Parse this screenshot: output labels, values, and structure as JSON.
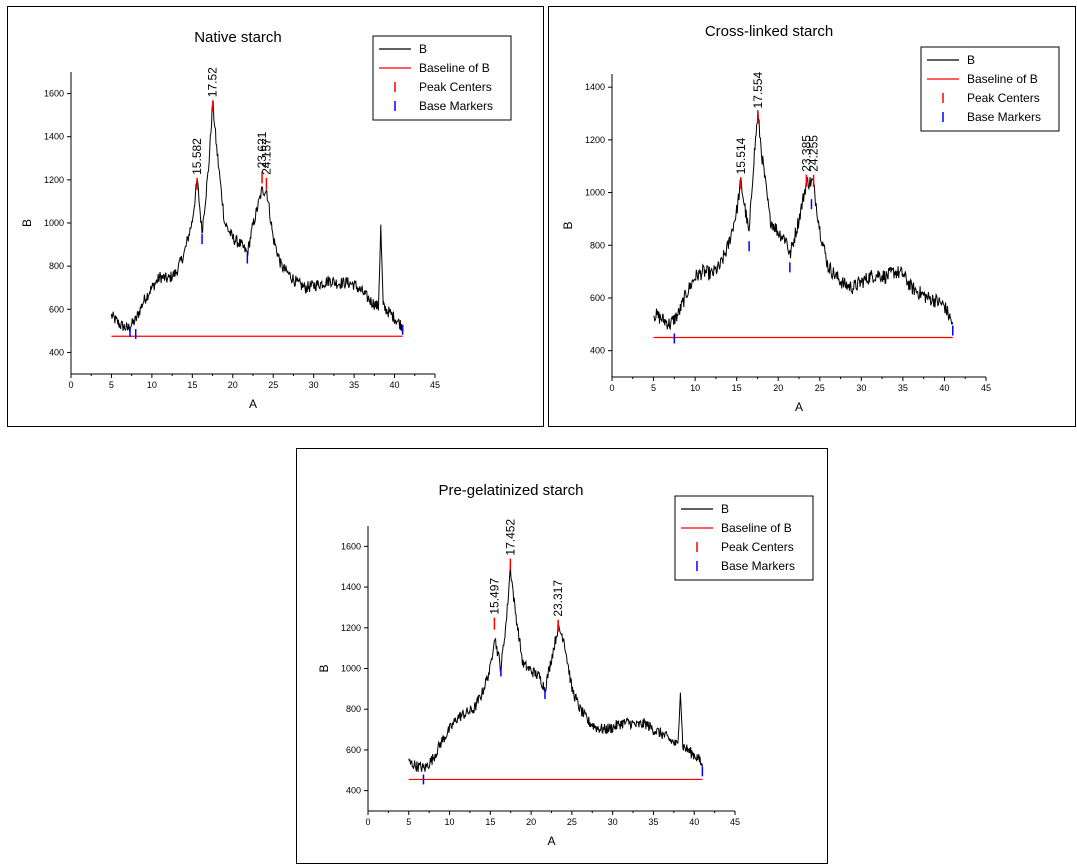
{
  "chart_data": [
    {
      "type": "line",
      "title": "Native starch",
      "xlabel": "A",
      "ylabel": "B",
      "xlim": [
        0,
        45
      ],
      "ylim": [
        300,
        1700
      ],
      "xticks": [
        0,
        5,
        10,
        15,
        20,
        25,
        30,
        35,
        40,
        45
      ],
      "yticks": [
        400,
        600,
        800,
        1000,
        1200,
        1400,
        1600
      ],
      "legend": [
        "B",
        "Baseline of B",
        "Peak Centers",
        "Base Markers"
      ],
      "legend_position": "top-right",
      "grid": false,
      "baseline": 475,
      "curve": [
        [
          5,
          570
        ],
        [
          6,
          530
        ],
        [
          7,
          510
        ],
        [
          8,
          550
        ],
        [
          9,
          640
        ],
        [
          10,
          700
        ],
        [
          11,
          750
        ],
        [
          12,
          740
        ],
        [
          13,
          770
        ],
        [
          14,
          860
        ],
        [
          15,
          1010
        ],
        [
          15.6,
          1200
        ],
        [
          16.2,
          960
        ],
        [
          17,
          1250
        ],
        [
          17.52,
          1560
        ],
        [
          18,
          1350
        ],
        [
          19,
          1000
        ],
        [
          20,
          930
        ],
        [
          21,
          900
        ],
        [
          21.8,
          860
        ],
        [
          22.5,
          990
        ],
        [
          23.6,
          1150
        ],
        [
          24.2,
          1150
        ],
        [
          25,
          930
        ],
        [
          26,
          800
        ],
        [
          27,
          760
        ],
        [
          28,
          720
        ],
        [
          29,
          700
        ],
        [
          30,
          710
        ],
        [
          31,
          720
        ],
        [
          32,
          735
        ],
        [
          33,
          720
        ],
        [
          34,
          725
        ],
        [
          35,
          715
        ],
        [
          36,
          680
        ],
        [
          37,
          640
        ],
        [
          38,
          610
        ],
        [
          38.3,
          980
        ],
        [
          38.6,
          610
        ],
        [
          39.5,
          580
        ],
        [
          40.5,
          540
        ],
        [
          41,
          520
        ]
      ],
      "peak_centers": [
        {
          "x": 15.582,
          "y": 1200,
          "label": "15.582"
        },
        {
          "x": 17.52,
          "y": 1560,
          "label": "17.52"
        },
        {
          "x": 23.621,
          "y": 1230,
          "label": "23.621"
        },
        {
          "x": 24.157,
          "y": 1200,
          "label": "24.157"
        }
      ],
      "base_markers": [
        {
          "x": 7.3,
          "y": 500
        },
        {
          "x": 8.0,
          "y": 490
        },
        {
          "x": 16.2,
          "y": 930
        },
        {
          "x": 21.8,
          "y": 840
        },
        {
          "x": 41,
          "y": 510
        }
      ]
    },
    {
      "type": "line",
      "title": "Cross-linked starch",
      "xlabel": "A",
      "ylabel": "B",
      "xlim": [
        0,
        45
      ],
      "ylim": [
        300,
        1450
      ],
      "xticks": [
        0,
        5,
        10,
        15,
        20,
        25,
        30,
        35,
        40,
        45
      ],
      "yticks": [
        400,
        600,
        800,
        1000,
        1200,
        1400
      ],
      "legend": [
        "B",
        "Baseline of B",
        "Peak Centers",
        "Base Markers"
      ],
      "legend_position": "top-right",
      "grid": false,
      "baseline": 450,
      "curve": [
        [
          5,
          540
        ],
        [
          6,
          520
        ],
        [
          7,
          500
        ],
        [
          8,
          540
        ],
        [
          9,
          620
        ],
        [
          10,
          680
        ],
        [
          11,
          700
        ],
        [
          12,
          690
        ],
        [
          13,
          720
        ],
        [
          14,
          800
        ],
        [
          15,
          930
        ],
        [
          15.5,
          1040
        ],
        [
          16.5,
          840
        ],
        [
          17,
          1100
        ],
        [
          17.55,
          1300
        ],
        [
          18,
          1150
        ],
        [
          19,
          900
        ],
        [
          20,
          850
        ],
        [
          21,
          820
        ],
        [
          21.4,
          760
        ],
        [
          22.5,
          900
        ],
        [
          23.4,
          1040
        ],
        [
          24.2,
          1040
        ],
        [
          25,
          860
        ],
        [
          26,
          720
        ],
        [
          27,
          680
        ],
        [
          28,
          650
        ],
        [
          29,
          640
        ],
        [
          30,
          660
        ],
        [
          31,
          680
        ],
        [
          32,
          690
        ],
        [
          33,
          680
        ],
        [
          34,
          700
        ],
        [
          35,
          690
        ],
        [
          36,
          640
        ],
        [
          37,
          620
        ],
        [
          38,
          600
        ],
        [
          39,
          590
        ],
        [
          40,
          570
        ],
        [
          41,
          500
        ]
      ],
      "peak_centers": [
        {
          "x": 15.514,
          "y": 1050,
          "label": "15.514"
        },
        {
          "x": 17.554,
          "y": 1300,
          "label": "17.554"
        },
        {
          "x": 23.385,
          "y": 1060,
          "label": "23.385"
        },
        {
          "x": 24.255,
          "y": 1060,
          "label": "24.255"
        }
      ],
      "base_markers": [
        {
          "x": 7.5,
          "y": 450
        },
        {
          "x": 16.5,
          "y": 800
        },
        {
          "x": 21.4,
          "y": 720
        },
        {
          "x": 24.0,
          "y": 960
        },
        {
          "x": 41,
          "y": 480
        }
      ]
    },
    {
      "type": "line",
      "title": "Pre-gelatinized starch",
      "xlabel": "A",
      "ylabel": "B",
      "xlim": [
        0,
        45
      ],
      "ylim": [
        300,
        1700
      ],
      "xticks": [
        0,
        5,
        10,
        15,
        20,
        25,
        30,
        35,
        40,
        45
      ],
      "yticks": [
        400,
        600,
        800,
        1000,
        1200,
        1400,
        1600
      ],
      "legend": [
        "B",
        "Baseline of B",
        "Peak Centers",
        "Base Markers"
      ],
      "legend_position": "top-right",
      "grid": false,
      "baseline": 455,
      "curve": [
        [
          5,
          540
        ],
        [
          6,
          520
        ],
        [
          7,
          510
        ],
        [
          8,
          560
        ],
        [
          9,
          640
        ],
        [
          10,
          700
        ],
        [
          11,
          760
        ],
        [
          12,
          780
        ],
        [
          13,
          800
        ],
        [
          14,
          880
        ],
        [
          15,
          1000
        ],
        [
          15.5,
          1160
        ],
        [
          16.3,
          1000
        ],
        [
          17,
          1250
        ],
        [
          17.45,
          1500
        ],
        [
          18,
          1300
        ],
        [
          19,
          1020
        ],
        [
          20,
          990
        ],
        [
          21,
          960
        ],
        [
          21.7,
          900
        ],
        [
          22.5,
          1050
        ],
        [
          23.3,
          1200
        ],
        [
          24,
          1150
        ],
        [
          25,
          900
        ],
        [
          26,
          800
        ],
        [
          27,
          740
        ],
        [
          28,
          710
        ],
        [
          29,
          700
        ],
        [
          30,
          710
        ],
        [
          31,
          730
        ],
        [
          32,
          735
        ],
        [
          33,
          720
        ],
        [
          34,
          730
        ],
        [
          35,
          700
        ],
        [
          36,
          680
        ],
        [
          37,
          650
        ],
        [
          38,
          620
        ],
        [
          38.3,
          900
        ],
        [
          38.6,
          620
        ],
        [
          39.5,
          590
        ],
        [
          40.5,
          560
        ],
        [
          41,
          520
        ]
      ],
      "peak_centers": [
        {
          "x": 15.497,
          "y": 1240,
          "label": "15.497"
        },
        {
          "x": 17.452,
          "y": 1530,
          "label": "17.452"
        },
        {
          "x": 23.317,
          "y": 1230,
          "label": "23.317"
        }
      ],
      "base_markers": [
        {
          "x": 6.8,
          "y": 460
        },
        {
          "x": 16.3,
          "y": 990
        },
        {
          "x": 21.7,
          "y": 880
        },
        {
          "x": 41,
          "y": 500
        }
      ]
    }
  ]
}
